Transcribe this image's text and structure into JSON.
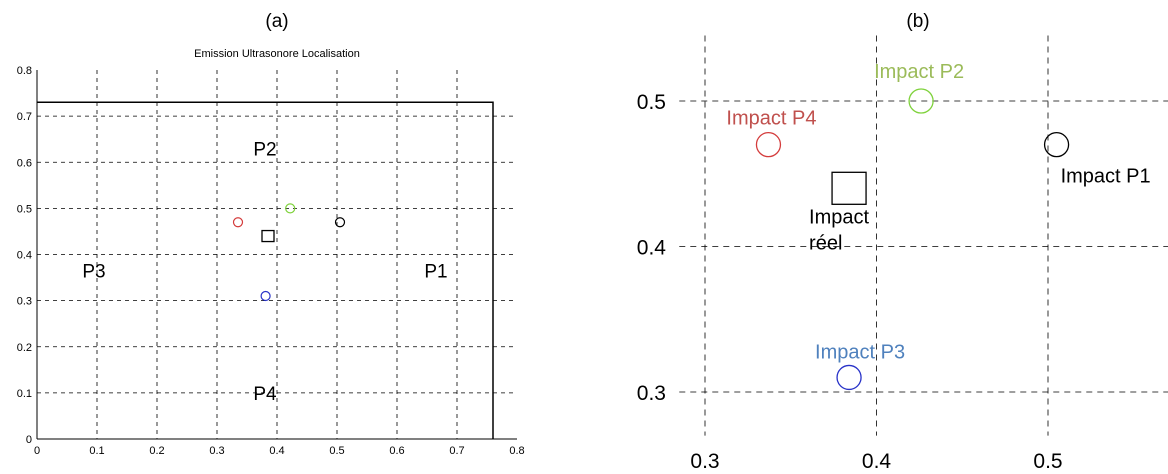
{
  "colors": {
    "axis": "#000000",
    "grid": "#000000",
    "red": "#d43c3c",
    "green": "#7fd23c",
    "blue": "#2832c8",
    "black": "#000000",
    "label_red": "#c0504d",
    "label_green": "#9bbb59",
    "label_blue": "#4f81bd"
  },
  "chart_data": [
    {
      "panel_label": "(a)",
      "type": "scatter",
      "title": "Emission Ultrasonore Localisation",
      "xlabel": "",
      "ylabel": "",
      "xlim": [
        0,
        0.8
      ],
      "ylim": [
        0,
        0.8
      ],
      "grid": true,
      "x_ticks": [
        "0",
        "0.1",
        "0.2",
        "0.3",
        "0.4",
        "0.5",
        "0.6",
        "0.7",
        "0.8"
      ],
      "y_ticks": [
        "0",
        "0.1",
        "0.2",
        "0.3",
        "0.4",
        "0.5",
        "0.6",
        "0.7",
        "0.8"
      ],
      "plate_outline": {
        "x_max": 0.76,
        "y_max": 0.73
      },
      "sensors": [
        {
          "label": "P1",
          "x": 0.665,
          "y": 0.365
        },
        {
          "label": "P2",
          "x": 0.38,
          "y": 0.63
        },
        {
          "label": "P3",
          "x": 0.095,
          "y": 0.365
        },
        {
          "label": "P4",
          "x": 0.38,
          "y": 0.1
        }
      ],
      "impacts": [
        {
          "x": 0.505,
          "y": 0.47,
          "color": "black"
        },
        {
          "x": 0.422,
          "y": 0.5,
          "color": "green"
        },
        {
          "x": 0.335,
          "y": 0.47,
          "color": "red"
        },
        {
          "x": 0.381,
          "y": 0.31,
          "color": "blue"
        }
      ],
      "actual_impact": {
        "x": 0.385,
        "y": 0.44
      }
    },
    {
      "panel_label": "(b)",
      "type": "scatter",
      "title": "",
      "xlabel": "",
      "ylabel": "",
      "xlim": [
        0.285,
        0.58
      ],
      "ylim": [
        0.27,
        0.545
      ],
      "grid": true,
      "x_ticks": [
        "0.3",
        "0.4",
        "0.5"
      ],
      "y_ticks": [
        "0.3",
        "0.4",
        "0.5"
      ],
      "impacts": [
        {
          "label": "Impact P1",
          "x": 0.505,
          "y": 0.47,
          "color": "black"
        },
        {
          "label": "Impact P2",
          "x": 0.426,
          "y": 0.5,
          "color": "green"
        },
        {
          "label": "Impact P4",
          "x": 0.337,
          "y": 0.47,
          "color": "red"
        },
        {
          "label": "Impact P3",
          "x": 0.384,
          "y": 0.31,
          "color": "blue"
        }
      ],
      "actual_impact": {
        "label_line1": "Impact",
        "label_line2": "réel",
        "x": 0.384,
        "y": 0.44
      }
    }
  ]
}
